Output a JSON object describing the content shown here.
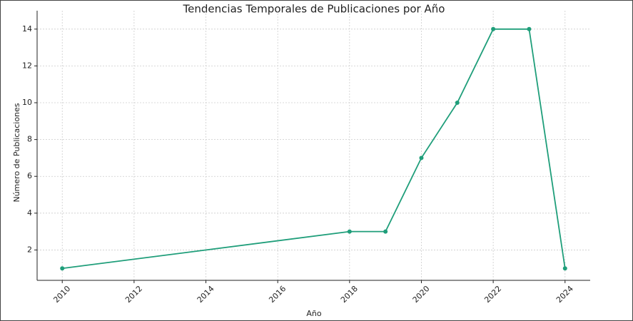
{
  "chart_data": {
    "type": "line",
    "title": "Tendencias Temporales de Publicaciones por Año",
    "x_label": "Año",
    "y_label": "Número de Publicaciones",
    "x": [
      2010,
      2018,
      2019,
      2020,
      2021,
      2022,
      2023,
      2024
    ],
    "series": [
      {
        "name": "Publicaciones",
        "color": "#1f9e7a",
        "values": [
          1,
          3,
          3,
          7,
          10,
          14,
          14,
          1
        ]
      }
    ],
    "xlim": [
      2009.3,
      2024.7
    ],
    "ylim": [
      0.35,
      15.0
    ],
    "xticks": [
      2010,
      2012,
      2014,
      2016,
      2018,
      2020,
      2022,
      2024
    ],
    "yticks": [
      2,
      4,
      6,
      8,
      10,
      12,
      14
    ],
    "grid": true
  }
}
